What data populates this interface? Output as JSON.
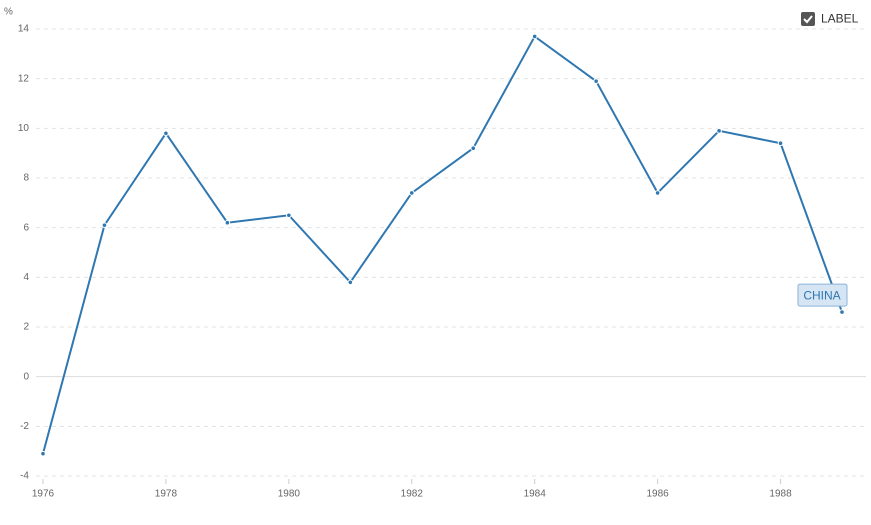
{
  "chart_data": {
    "type": "line",
    "y_label": "%",
    "toggle_label": "LABEL",
    "x": [
      1976,
      1977,
      1978,
      1979,
      1980,
      1981,
      1982,
      1983,
      1984,
      1985,
      1986,
      1987,
      1988,
      1989
    ],
    "series": [
      {
        "name": "CHINA",
        "color": "#2f77b1",
        "values": [
          -3.1,
          6.1,
          9.8,
          6.2,
          6.5,
          3.8,
          7.4,
          9.2,
          13.7,
          11.9,
          7.4,
          9.9,
          9.4,
          2.6
        ]
      }
    ],
    "xlim": [
      1976,
      1989
    ],
    "xticks": [
      1976,
      1978,
      1980,
      1982,
      1984,
      1986,
      1988
    ],
    "ylim": [
      -4,
      14
    ],
    "yticks": [
      -4,
      -2,
      0,
      2,
      4,
      6,
      8,
      10,
      12,
      14
    ],
    "grid": true
  }
}
